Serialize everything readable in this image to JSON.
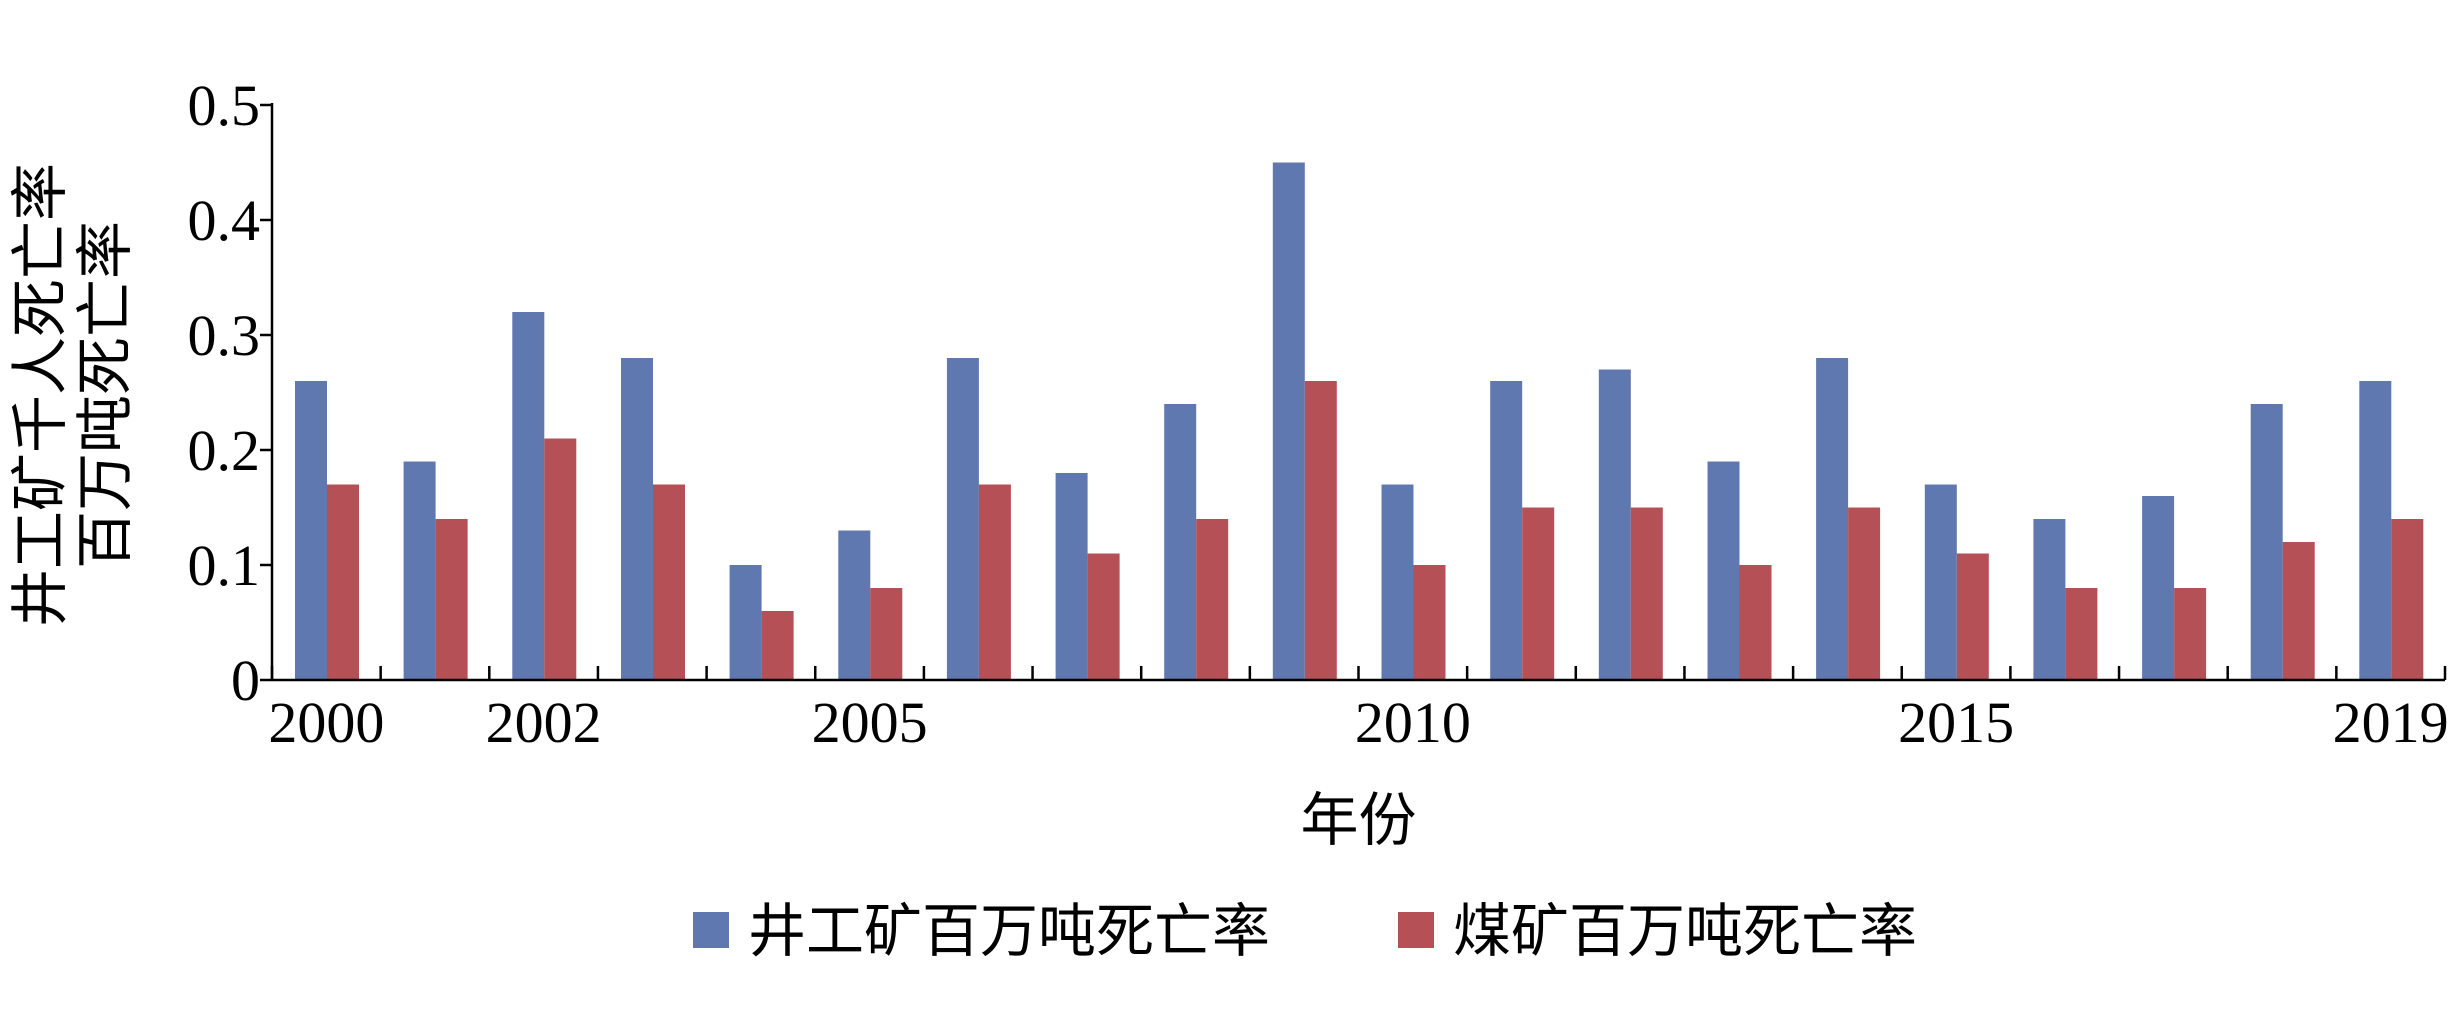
{
  "chart_data": {
    "type": "bar",
    "categories": [
      "2000",
      "2001",
      "2002",
      "2003",
      "2004",
      "2005",
      "2006",
      "2007",
      "2008",
      "2009",
      "2010",
      "2011",
      "2012",
      "2013",
      "2014",
      "2015",
      "2016",
      "2017",
      "2018",
      "2019"
    ],
    "x_tick_labels": [
      "2000",
      "",
      "2002",
      "",
      "",
      "2005",
      "",
      "",
      "",
      "",
      "2010",
      "",
      "",
      "",
      "",
      "2015",
      "",
      "",
      "",
      "2019"
    ],
    "series": [
      {
        "name": "井工矿百万吨死亡率",
        "color": "#6078b0",
        "values": [
          0.26,
          0.19,
          0.32,
          0.28,
          0.1,
          0.13,
          0.28,
          0.18,
          0.24,
          0.45,
          0.17,
          0.26,
          0.27,
          0.19,
          0.28,
          0.17,
          0.14,
          0.16,
          0.24,
          0.26
        ]
      },
      {
        "name": "煤矿百万吨死亡率",
        "color": "#b55156",
        "values": [
          0.17,
          0.14,
          0.21,
          0.17,
          0.06,
          0.08,
          0.17,
          0.11,
          0.14,
          0.26,
          0.1,
          0.15,
          0.15,
          0.1,
          0.15,
          0.11,
          0.08,
          0.08,
          0.12,
          0.14
        ]
      }
    ],
    "ylim": [
      0,
      0.5
    ],
    "yticks": [
      "0",
      "0.1",
      "0.2",
      "0.3",
      "0.4",
      "0.5"
    ],
    "ylabel_lines": [
      "井工矿千人死亡率",
      "百万吨死亡率"
    ],
    "xlabel": "年份",
    "legend_position": "bottom",
    "grid": false
  }
}
